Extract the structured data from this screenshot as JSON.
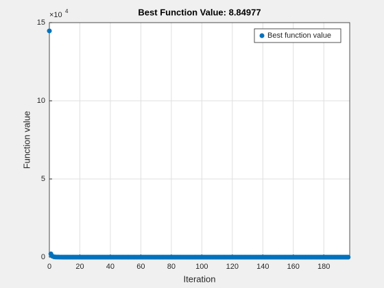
{
  "chart_data": {
    "type": "scatter",
    "title": "Best Function Value: 8.84977",
    "xlabel": "Iteration",
    "ylabel": "Function value",
    "y_multiplier": "×10",
    "y_multiplier_exponent": "4",
    "grid": true,
    "legend_position": "upper-right",
    "xlim": [
      0,
      197
    ],
    "ylim": [
      0,
      150000
    ],
    "xticks": [
      0,
      20,
      40,
      60,
      80,
      100,
      120,
      140,
      160,
      180
    ],
    "yticks": [
      0,
      {
        "value": 50000,
        "label": "5"
      },
      {
        "value": 100000,
        "label": "10"
      },
      {
        "value": 150000,
        "label": "15"
      }
    ],
    "series": [
      {
        "name": "Best function value",
        "color": "#0072bd",
        "x": [
          0,
          1,
          2,
          3,
          4,
          5,
          6,
          7,
          8,
          9,
          10,
          11,
          12,
          13,
          14,
          15,
          16,
          17,
          18,
          19,
          20,
          21,
          22,
          23,
          24,
          25,
          26,
          27,
          28,
          29,
          30,
          31,
          32,
          33,
          34,
          35,
          36,
          37,
          38,
          39,
          40,
          41,
          42,
          43,
          44,
          45,
          46,
          47,
          48,
          49,
          50,
          51,
          52,
          53,
          54,
          55,
          56,
          57,
          58,
          59,
          60,
          61,
          62,
          63,
          64,
          65,
          66,
          67,
          68,
          69,
          70,
          71,
          72,
          73,
          74,
          75,
          76,
          77,
          78,
          79,
          80,
          81,
          82,
          83,
          84,
          85,
          86,
          87,
          88,
          89,
          90,
          91,
          92,
          93,
          94,
          95,
          96,
          97,
          98,
          99,
          100,
          101,
          102,
          103,
          104,
          105,
          106,
          107,
          108,
          109,
          110,
          111,
          112,
          113,
          114,
          115,
          116,
          117,
          118,
          119,
          120,
          121,
          122,
          123,
          124,
          125,
          126,
          127,
          128,
          129,
          130,
          131,
          132,
          133,
          134,
          135,
          136,
          137,
          138,
          139,
          140,
          141,
          142,
          143,
          144,
          145,
          146,
          147,
          148,
          149,
          150,
          151,
          152,
          153,
          154,
          155,
          156,
          157,
          158,
          159,
          160,
          161,
          162,
          163,
          164,
          165,
          166,
          167,
          168,
          169,
          170,
          171,
          172,
          173,
          174,
          175,
          176,
          177,
          178,
          179,
          180,
          181,
          182,
          183,
          184,
          185,
          186,
          187,
          188,
          189,
          190,
          191,
          192,
          193,
          194,
          195,
          196
        ],
        "values": [
          144700,
          2100,
          620,
          240,
          110,
          58,
          35,
          24,
          17,
          13,
          11,
          10.2,
          9.6,
          9.2,
          9.0,
          8.84977,
          8.84977,
          8.84977,
          8.84977,
          8.84977,
          8.84977,
          8.84977,
          8.84977,
          8.84977,
          8.84977,
          8.84977,
          8.84977,
          8.84977,
          8.84977,
          8.84977,
          8.84977,
          8.84977,
          8.84977,
          8.84977,
          8.84977,
          8.84977,
          8.84977,
          8.84977,
          8.84977,
          8.84977,
          8.84977,
          8.84977,
          8.84977,
          8.84977,
          8.84977,
          8.84977,
          8.84977,
          8.84977,
          8.84977,
          8.84977,
          8.84977,
          8.84977,
          8.84977,
          8.84977,
          8.84977,
          8.84977,
          8.84977,
          8.84977,
          8.84977,
          8.84977,
          8.84977,
          8.84977,
          8.84977,
          8.84977,
          8.84977,
          8.84977,
          8.84977,
          8.84977,
          8.84977,
          8.84977,
          8.84977,
          8.84977,
          8.84977,
          8.84977,
          8.84977,
          8.84977,
          8.84977,
          8.84977,
          8.84977,
          8.84977,
          8.84977,
          8.84977,
          8.84977,
          8.84977,
          8.84977,
          8.84977,
          8.84977,
          8.84977,
          8.84977,
          8.84977,
          8.84977,
          8.84977,
          8.84977,
          8.84977,
          8.84977,
          8.84977,
          8.84977,
          8.84977,
          8.84977,
          8.84977,
          8.84977,
          8.84977,
          8.84977,
          8.84977,
          8.84977,
          8.84977,
          8.84977,
          8.84977,
          8.84977,
          8.84977,
          8.84977,
          8.84977,
          8.84977,
          8.84977,
          8.84977,
          8.84977,
          8.84977,
          8.84977,
          8.84977,
          8.84977,
          8.84977,
          8.84977,
          8.84977,
          8.84977,
          8.84977,
          8.84977,
          8.84977,
          8.84977,
          8.84977,
          8.84977,
          8.84977,
          8.84977,
          8.84977,
          8.84977,
          8.84977,
          8.84977,
          8.84977,
          8.84977,
          8.84977,
          8.84977,
          8.84977,
          8.84977,
          8.84977,
          8.84977,
          8.84977,
          8.84977,
          8.84977,
          8.84977,
          8.84977,
          8.84977,
          8.84977,
          8.84977,
          8.84977,
          8.84977,
          8.84977,
          8.84977,
          8.84977,
          8.84977,
          8.84977,
          8.84977,
          8.84977,
          8.84977,
          8.84977,
          8.84977,
          8.84977,
          8.84977,
          8.84977,
          8.84977,
          8.84977,
          8.84977,
          8.84977,
          8.84977,
          8.84977,
          8.84977,
          8.84977,
          8.84977,
          8.84977,
          8.84977,
          8.84977,
          8.84977,
          8.84977,
          8.84977,
          8.84977,
          8.84977,
          8.84977,
          8.84977,
          8.84977,
          8.84977,
          8.84977,
          8.84977,
          8.84977,
          8.84977,
          8.84977,
          8.84977,
          8.84977,
          8.84977,
          8.84977
        ]
      }
    ]
  }
}
